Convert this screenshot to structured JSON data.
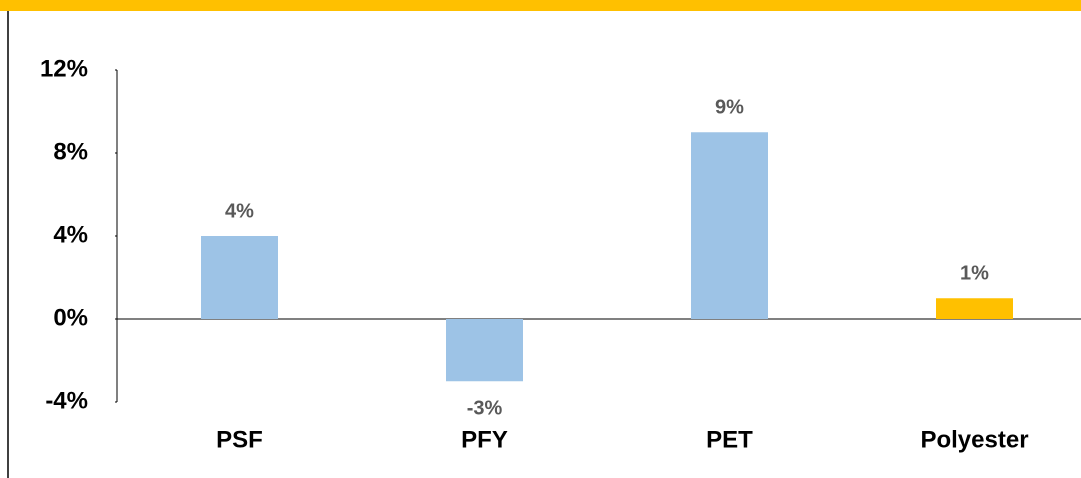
{
  "chart_data": {
    "type": "bar",
    "categories": [
      "PSF",
      "PFY",
      "PET",
      "Polyester"
    ],
    "values": [
      4,
      -3,
      9,
      1
    ],
    "value_labels": [
      "4%",
      "-3%",
      "9%",
      "1%"
    ],
    "colors": [
      "#9dc3e6",
      "#9dc3e6",
      "#9dc3e6",
      "#ffc000"
    ],
    "ylim": [
      -4,
      12
    ],
    "yticks": [
      {
        "value": -4,
        "label": "-4%"
      },
      {
        "value": 0,
        "label": "0%"
      },
      {
        "value": 4,
        "label": "4%"
      },
      {
        "value": 8,
        "label": "8%"
      },
      {
        "value": 12,
        "label": "12%"
      }
    ]
  }
}
